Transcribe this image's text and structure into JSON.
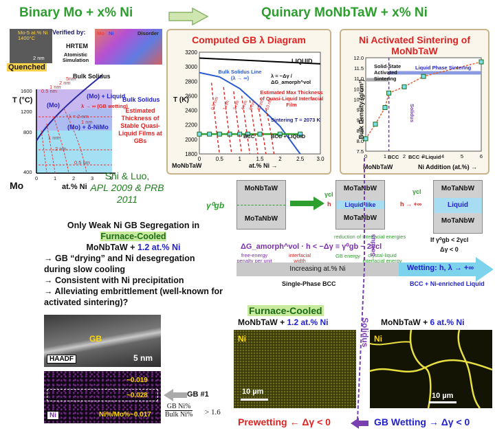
{
  "left": {
    "title": "Binary Mo + x% Ni",
    "verified_by": "Verified by:",
    "hrtem": "HRTEM",
    "atomistic": "Atomistic Simulation",
    "legend": {
      "mo": "Mo",
      "ni": "Ni",
      "disorder": "Disorder"
    },
    "inset_label": "Mo-5 at.% Ni 1400°C",
    "inset_scale": "2 nm",
    "quenched": "Quenched",
    "y_axis": "T (°C)",
    "y_ticks": [
      "1600",
      "1200",
      "800",
      "400"
    ],
    "x_ticks": [
      "0",
      "1",
      "2",
      "3",
      "4"
    ],
    "x_label": "at.% Ni",
    "mo_label": "Mo",
    "bulk_solidus_top": "Bulk Solidus",
    "bulk_solidus_right": "Bulk Solidus",
    "region_liquid": "(Mo) + Liquid",
    "region_mo": "(Mo)",
    "region_delta": "(Mo) + δ-NiMo",
    "gb_wetting": "λ → ∞ (GB wetting)",
    "thickness_note": "Estimated Thickness of Stable Quasi-Liquid Films at GBs",
    "curve_labels": [
      "0.5 nm",
      "1 nm",
      "2 nm",
      "5nm",
      "λ = 2 nm",
      "1 nm",
      "0.5 nm",
      "2 nm",
      "1 nm"
    ],
    "citation_line1": "Shi & Luo,",
    "citation_line2": "APL 2009 & PRB 2011"
  },
  "right_title": "Quinary MoNbTaW + x% Ni",
  "gb_diagram": {
    "title": "Computed GB λ Diagram",
    "y_label": "T (K)",
    "y_ticks": [
      "3200",
      "3000",
      "2800",
      "2600",
      "2400",
      "2200",
      "2000",
      "1800"
    ],
    "x_ticks": [
      "0",
      "0.5",
      "1",
      "1.5",
      "2",
      "2.5",
      "3.0"
    ],
    "x_label": "at.% Ni →",
    "x_start": "MoNbTaW",
    "liquid": "LIQUID",
    "bulk_solidus": "Bulk Solidus Line (λ → ∞)",
    "formula": "λ = −Δγ / ΔG_amorph^vol",
    "estimated": "Estimated Max Thickness of Quasi-Liquid Interfacial Film",
    "sintering": "Sintering T = 2073 K",
    "bcc": "BCC",
    "bcc_liquid": "BCC + LIQUID",
    "curve_labels": [
      "0.5 nm",
      "1 nm",
      "2 nm",
      "4 nm",
      "6 nm",
      "8 nm",
      "10 nm"
    ],
    "chart_data": {
      "type": "line",
      "xlabel": "at.% Ni →",
      "ylabel": "T (K)",
      "xlim": [
        0,
        3.0
      ],
      "ylim": [
        1800,
        3200
      ],
      "series": [
        {
          "name": "Bulk Solidus Line",
          "x": [
            0,
            0.5,
            1.0,
            1.5,
            2.0,
            2.5
          ],
          "y": [
            2920,
            2860,
            2700,
            2450,
            2180,
            1800
          ]
        },
        {
          "name": "LIQUID",
          "x": [
            0,
            3.0
          ],
          "y": [
            3120,
            3040
          ]
        },
        {
          "name": "Sintering T = 2073 K",
          "x": [
            0,
            0.25,
            0.5,
            0.75,
            1.0,
            1.2,
            1.5,
            2.0,
            2.5
          ],
          "y": [
            2073,
            2073,
            2073,
            2073,
            2073,
            2073,
            2073,
            2073,
            2073
          ]
        }
      ]
    }
  },
  "sintering": {
    "title": "Ni Activated Sintering of MoNbTaW",
    "y_label": "Bulk Density (g/cm³)",
    "y_ticks": [
      "12.0",
      "11.5",
      "11.0",
      "10.5",
      "10.0",
      "9.5",
      "9.0",
      "8.5",
      "8.0",
      "7.5"
    ],
    "x_ticks": [
      "0",
      "1",
      "2",
      "3",
      "4",
      "5",
      "6"
    ],
    "x_label": "Ni Addition (at.%) →",
    "x_start": "MoNbTaW",
    "solid_state": "Solid-State Activated Sintering",
    "liquid_phase": "Liquid Phase Sintering",
    "solidus": "Solidus",
    "bcc": "BCC",
    "bcc_liquid": "BCC + Liquid",
    "chart_data": {
      "type": "scatter",
      "xlabel": "Ni Addition (at.%)",
      "ylabel": "Bulk Density (g/cm³)",
      "xlim": [
        0,
        6
      ],
      "ylim": [
        7.5,
        12.0
      ],
      "x": [
        0,
        0.5,
        1.0,
        1.2,
        2.0,
        3.0,
        6.0
      ],
      "y": [
        8.1,
        8.8,
        9.6,
        10.3,
        10.6,
        11.1,
        11.8
      ]
    }
  },
  "schematic": {
    "gamma_gb": "γ⁰gb",
    "monbtaw1": "MoNbTaW",
    "motanbw1": "MoTaNbW",
    "motanbw2": "MoTaNbW",
    "liquid_like": "Liquid-like",
    "motanbw3": "MoTaNbW",
    "liquid": "Liquid",
    "motanbw4": "MoTaNbW",
    "motanbw5": "MoTaNbW",
    "gamma_cl": "γcl",
    "h": "h",
    "h_inf": "h → +∞",
    "reduction": "reduction of interfacial energies",
    "inequality": "ΔG_amorph^vol · h < −Δγ ≡ γ⁰gb − 2γcl",
    "free_energy": "free-energy penalty per unit volume",
    "interfacial_width": "interfacial width",
    "gb_energy": "GB energy",
    "crystal_liquid": "crystal-liquid interfacial energy",
    "if_cond": "If γ⁰gb < 2γcl",
    "delta_gamma": "Δγ < 0",
    "increasing": "Increasing at.% Ni",
    "single_phase": "Single-Phase BCC",
    "wetting": "Wetting: h, λ → +∞",
    "bcc_ni_liquid": "BCC + Ni-enriched Liquid",
    "solidus_v": "Solidus"
  },
  "weak": {
    "line1": "Only Weak Ni GB Segregation in",
    "furnace": "Furnace-Cooled",
    "compound_a": "MoNbTaW + ",
    "compound_b": "1.2 at.% Ni",
    "bullets": [
      "GB “drying” and Ni desegregation during slow cooling",
      "Consistent with Ni precipitation",
      "Alleviating embrittlement (well-known for activated sintering)?"
    ],
    "gb": "GB",
    "haadf": "HAADF",
    "scale": "5 nm",
    "vals": [
      "~0.019",
      "~0.028",
      "Ni%/Mo%~0.017"
    ],
    "ni": "Ni",
    "gb1": "GB #1",
    "ratio_num": "GB Ni%",
    "ratio_den": "Bulk Ni%",
    "ratio_val": "> 1.6"
  },
  "bottom": {
    "furnace": "Furnace-Cooled",
    "left_a": "MoNbTaW + ",
    "left_b": "1.2 at.% Ni",
    "right_a": "MoNbTaW + ",
    "right_b": "6 at.% Ni",
    "ni1": "Ni",
    "ni2": "Ni",
    "scale1": "10 µm",
    "scale2": "10 µm",
    "solidus": "Solidus",
    "prewetting": "Prewetting ← Δγ < 0",
    "gbwetting": "GB Wetting → Δγ < 0"
  }
}
